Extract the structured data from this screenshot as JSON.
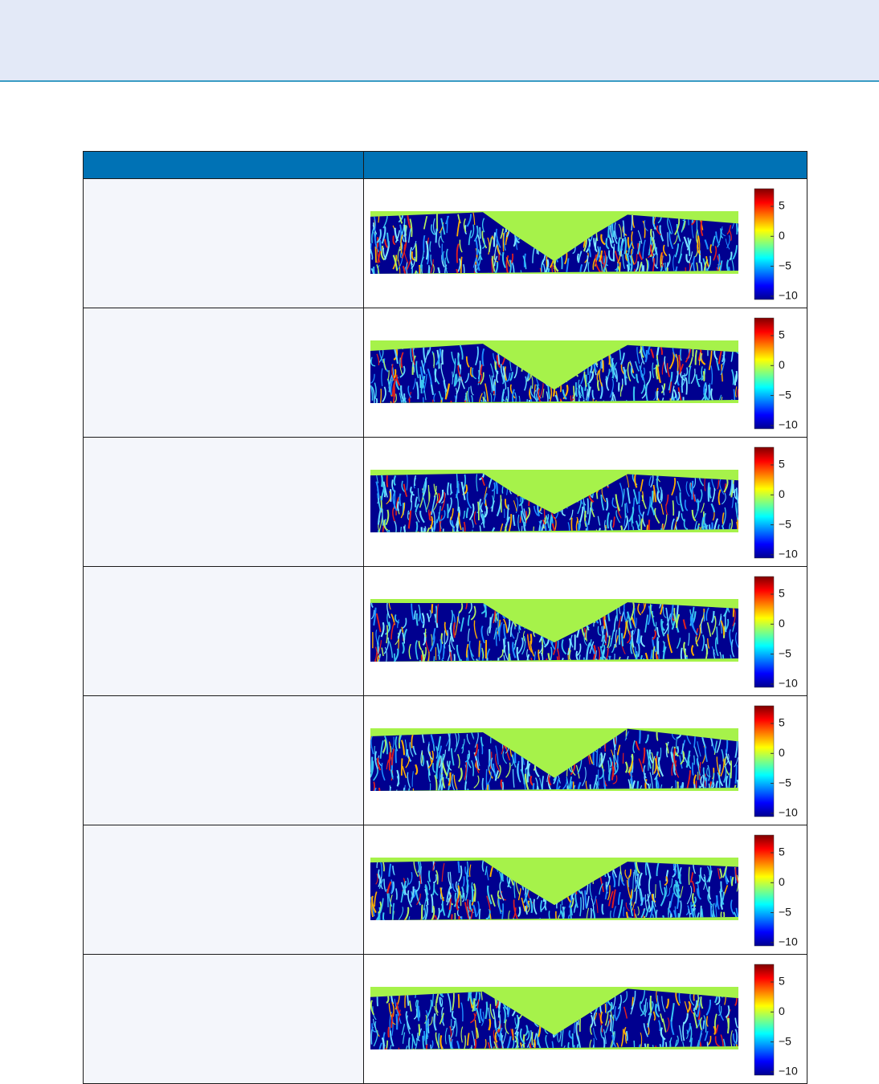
{
  "table": {
    "rows": [
      {
        "colorbar_ticks": [
          "5",
          "0",
          "−5",
          "−10"
        ]
      },
      {
        "colorbar_ticks": [
          "5",
          "0",
          "−5",
          "−10"
        ]
      },
      {
        "colorbar_ticks": [
          "5",
          "0",
          "−5",
          "−10"
        ]
      },
      {
        "colorbar_ticks": [
          "5",
          "0",
          "−5",
          "−10"
        ]
      },
      {
        "colorbar_ticks": [
          "5",
          "0",
          "−5",
          "−10"
        ]
      },
      {
        "colorbar_ticks": [
          "5",
          "0",
          "−5",
          "−10"
        ]
      },
      {
        "colorbar_ticks": [
          "5",
          "0",
          "−5",
          "−10"
        ]
      }
    ]
  }
}
